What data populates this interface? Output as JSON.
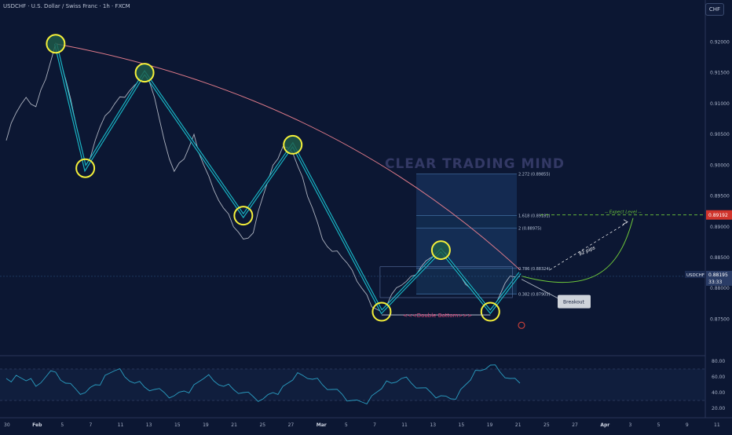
{
  "header": {
    "symbol_title": "USDCHF · U.S. Dollar / Swiss Franc · 1h · FXCM",
    "currency_button": "CHF"
  },
  "watermark": "CLEAR TRADING MIND",
  "colors": {
    "background": "#0c1733",
    "price_line": "#c9ced8",
    "pattern_fill": "#19c3d1",
    "circle_yellow": "#f5f03a",
    "circle_fill": "#1f5e4a",
    "curve_line": "#e07b8a",
    "projection_line": "#6fc93a",
    "rsi_line": "#2a9ec2",
    "axis_text": "#a8b2c8",
    "double_bottom_text": "#e0457a"
  },
  "chart_data": [
    {
      "type": "line",
      "title": "",
      "series": [
        {
          "name": "USDCHF",
          "points": [
            [
              "Jan 30",
              0.904
            ],
            [
              "Jan 31",
              0.9085
            ],
            [
              "Feb 1",
              0.911
            ],
            [
              "Feb 2",
              0.9095
            ],
            [
              "Feb 3",
              0.914
            ],
            [
              "Feb 4",
              0.9197
            ],
            [
              "Feb 5",
              0.914
            ],
            [
              "Feb 6",
              0.907
            ],
            [
              "Feb 7",
              0.8995
            ],
            [
              "Feb 8",
              0.904
            ],
            [
              "Feb 9",
              0.908
            ],
            [
              "Feb 10",
              0.91
            ],
            [
              "Feb 11",
              0.911
            ],
            [
              "Feb 12",
              0.913
            ],
            [
              "Feb 13",
              0.915
            ],
            [
              "Feb 14",
              0.911
            ],
            [
              "Feb 15",
              0.904
            ],
            [
              "Feb 16",
              0.899
            ],
            [
              "Feb 17",
              0.901
            ],
            [
              "Feb 18",
              0.905
            ],
            [
              "Feb 19",
              0.9
            ],
            [
              "Feb 20",
              0.896
            ],
            [
              "Feb 21",
              0.893
            ],
            [
              "Feb 22",
              0.89
            ],
            [
              "Feb 23",
              0.888
            ],
            [
              "Feb 24",
              0.889
            ],
            [
              "Feb 25",
              0.895
            ],
            [
              "Feb 26",
              0.9
            ],
            [
              "Feb 27",
              0.903
            ],
            [
              "Feb 28",
              0.902
            ],
            [
              "Mar 1",
              0.898
            ],
            [
              "Mar 2",
              0.893
            ],
            [
              "Mar 3",
              0.888
            ],
            [
              "Mar 4",
              0.886
            ],
            [
              "Mar 5",
              0.885
            ],
            [
              "Mar 6",
              0.883
            ],
            [
              "Mar 7",
              0.88
            ],
            [
              "Mar 8",
              0.877
            ],
            [
              "Mar 9",
              0.8762
            ],
            [
              "Mar 10",
              0.879
            ],
            [
              "Mar 11",
              0.8805
            ],
            [
              "Mar 12",
              0.882
            ],
            [
              "Mar 13",
              0.8835
            ],
            [
              "Mar 14",
              0.885
            ],
            [
              "Mar 15",
              0.8862
            ],
            [
              "Mar 16",
              0.884
            ],
            [
              "Mar 17",
              0.882
            ],
            [
              "Mar 18",
              0.88
            ],
            [
              "Mar 19",
              0.878
            ],
            [
              "Mar 20",
              0.8765
            ],
            [
              "Mar 21",
              0.879
            ],
            [
              "Mar 22",
              0.882
            ],
            [
              "Mar 23",
              0.8819
            ]
          ]
        }
      ],
      "xlabel": "",
      "ylabel": "",
      "ylim": [
        0.872,
        0.924
      ],
      "x_ticks": [
        "30",
        "Feb",
        "5",
        "7",
        "11",
        "13",
        "15",
        "19",
        "21",
        "25",
        "27",
        "Mar",
        "5",
        "7",
        "11",
        "13",
        "15",
        "19",
        "21",
        "25",
        "27",
        "Apr",
        "3",
        "5",
        "9",
        "11"
      ],
      "y_ticks": [
        "0.92000",
        "0.91500",
        "0.91000",
        "0.90500",
        "0.90000",
        "0.89500",
        "0.89000",
        "0.88500",
        "0.88000",
        "0.87500"
      ],
      "pattern_pivots": [
        [
          "Feb 4",
          0.9197
        ],
        [
          "Feb 7",
          0.8995
        ],
        [
          "Feb 13",
          0.915
        ],
        [
          "Feb 23",
          0.8918
        ],
        [
          "Feb 28",
          0.9033
        ],
        [
          "Mar 9",
          0.8762
        ],
        [
          "Mar 15",
          0.8862
        ],
        [
          "Mar 20",
          0.8762
        ],
        [
          "Mar 23",
          0.8825
        ]
      ],
      "fib_levels": [
        {
          "label": "2.272 (0.89855)",
          "value": 0.89855
        },
        {
          "label": "2 (0.88975)",
          "value": 0.88975
        },
        {
          "label": "1.618 (0.89181)",
          "value": 0.89181
        },
        {
          "label": "0.786 (0.88324)",
          "value": 0.88324
        },
        {
          "label": "0.382 (0.87905)",
          "value": 0.87905
        }
      ],
      "annotations": {
        "double_bottom": "<<<Double Bottom>>>",
        "breakout": "Breakout",
        "pips": "92 pips",
        "expect_level": "Expect Level"
      },
      "price_labels": {
        "target": "0.89192",
        "current_symbol": "USDCHF",
        "current_price": "0.88195",
        "countdown": "33:33"
      },
      "grid": false,
      "legend": "none"
    },
    {
      "type": "line",
      "title": "",
      "series": [
        {
          "name": "",
          "values": [
            58,
            62,
            55,
            48,
            60,
            66,
            52,
            45,
            40,
            50,
            62,
            68,
            60,
            52,
            47,
            44,
            40,
            36,
            42,
            50,
            58,
            55,
            48,
            44,
            40,
            35,
            32,
            40,
            48,
            56,
            62,
            57,
            50,
            44,
            38,
            30,
            28,
            36,
            45,
            52,
            58,
            52,
            46,
            40,
            36,
            32,
            44,
            56,
            68,
            75,
            66,
            58,
            52
          ]
        }
      ],
      "ylim": [
        15,
        85
      ],
      "y_ticks": [
        "80.00",
        "60.00",
        "40.00",
        "20.00"
      ],
      "bands": [
        70,
        30
      ]
    }
  ]
}
